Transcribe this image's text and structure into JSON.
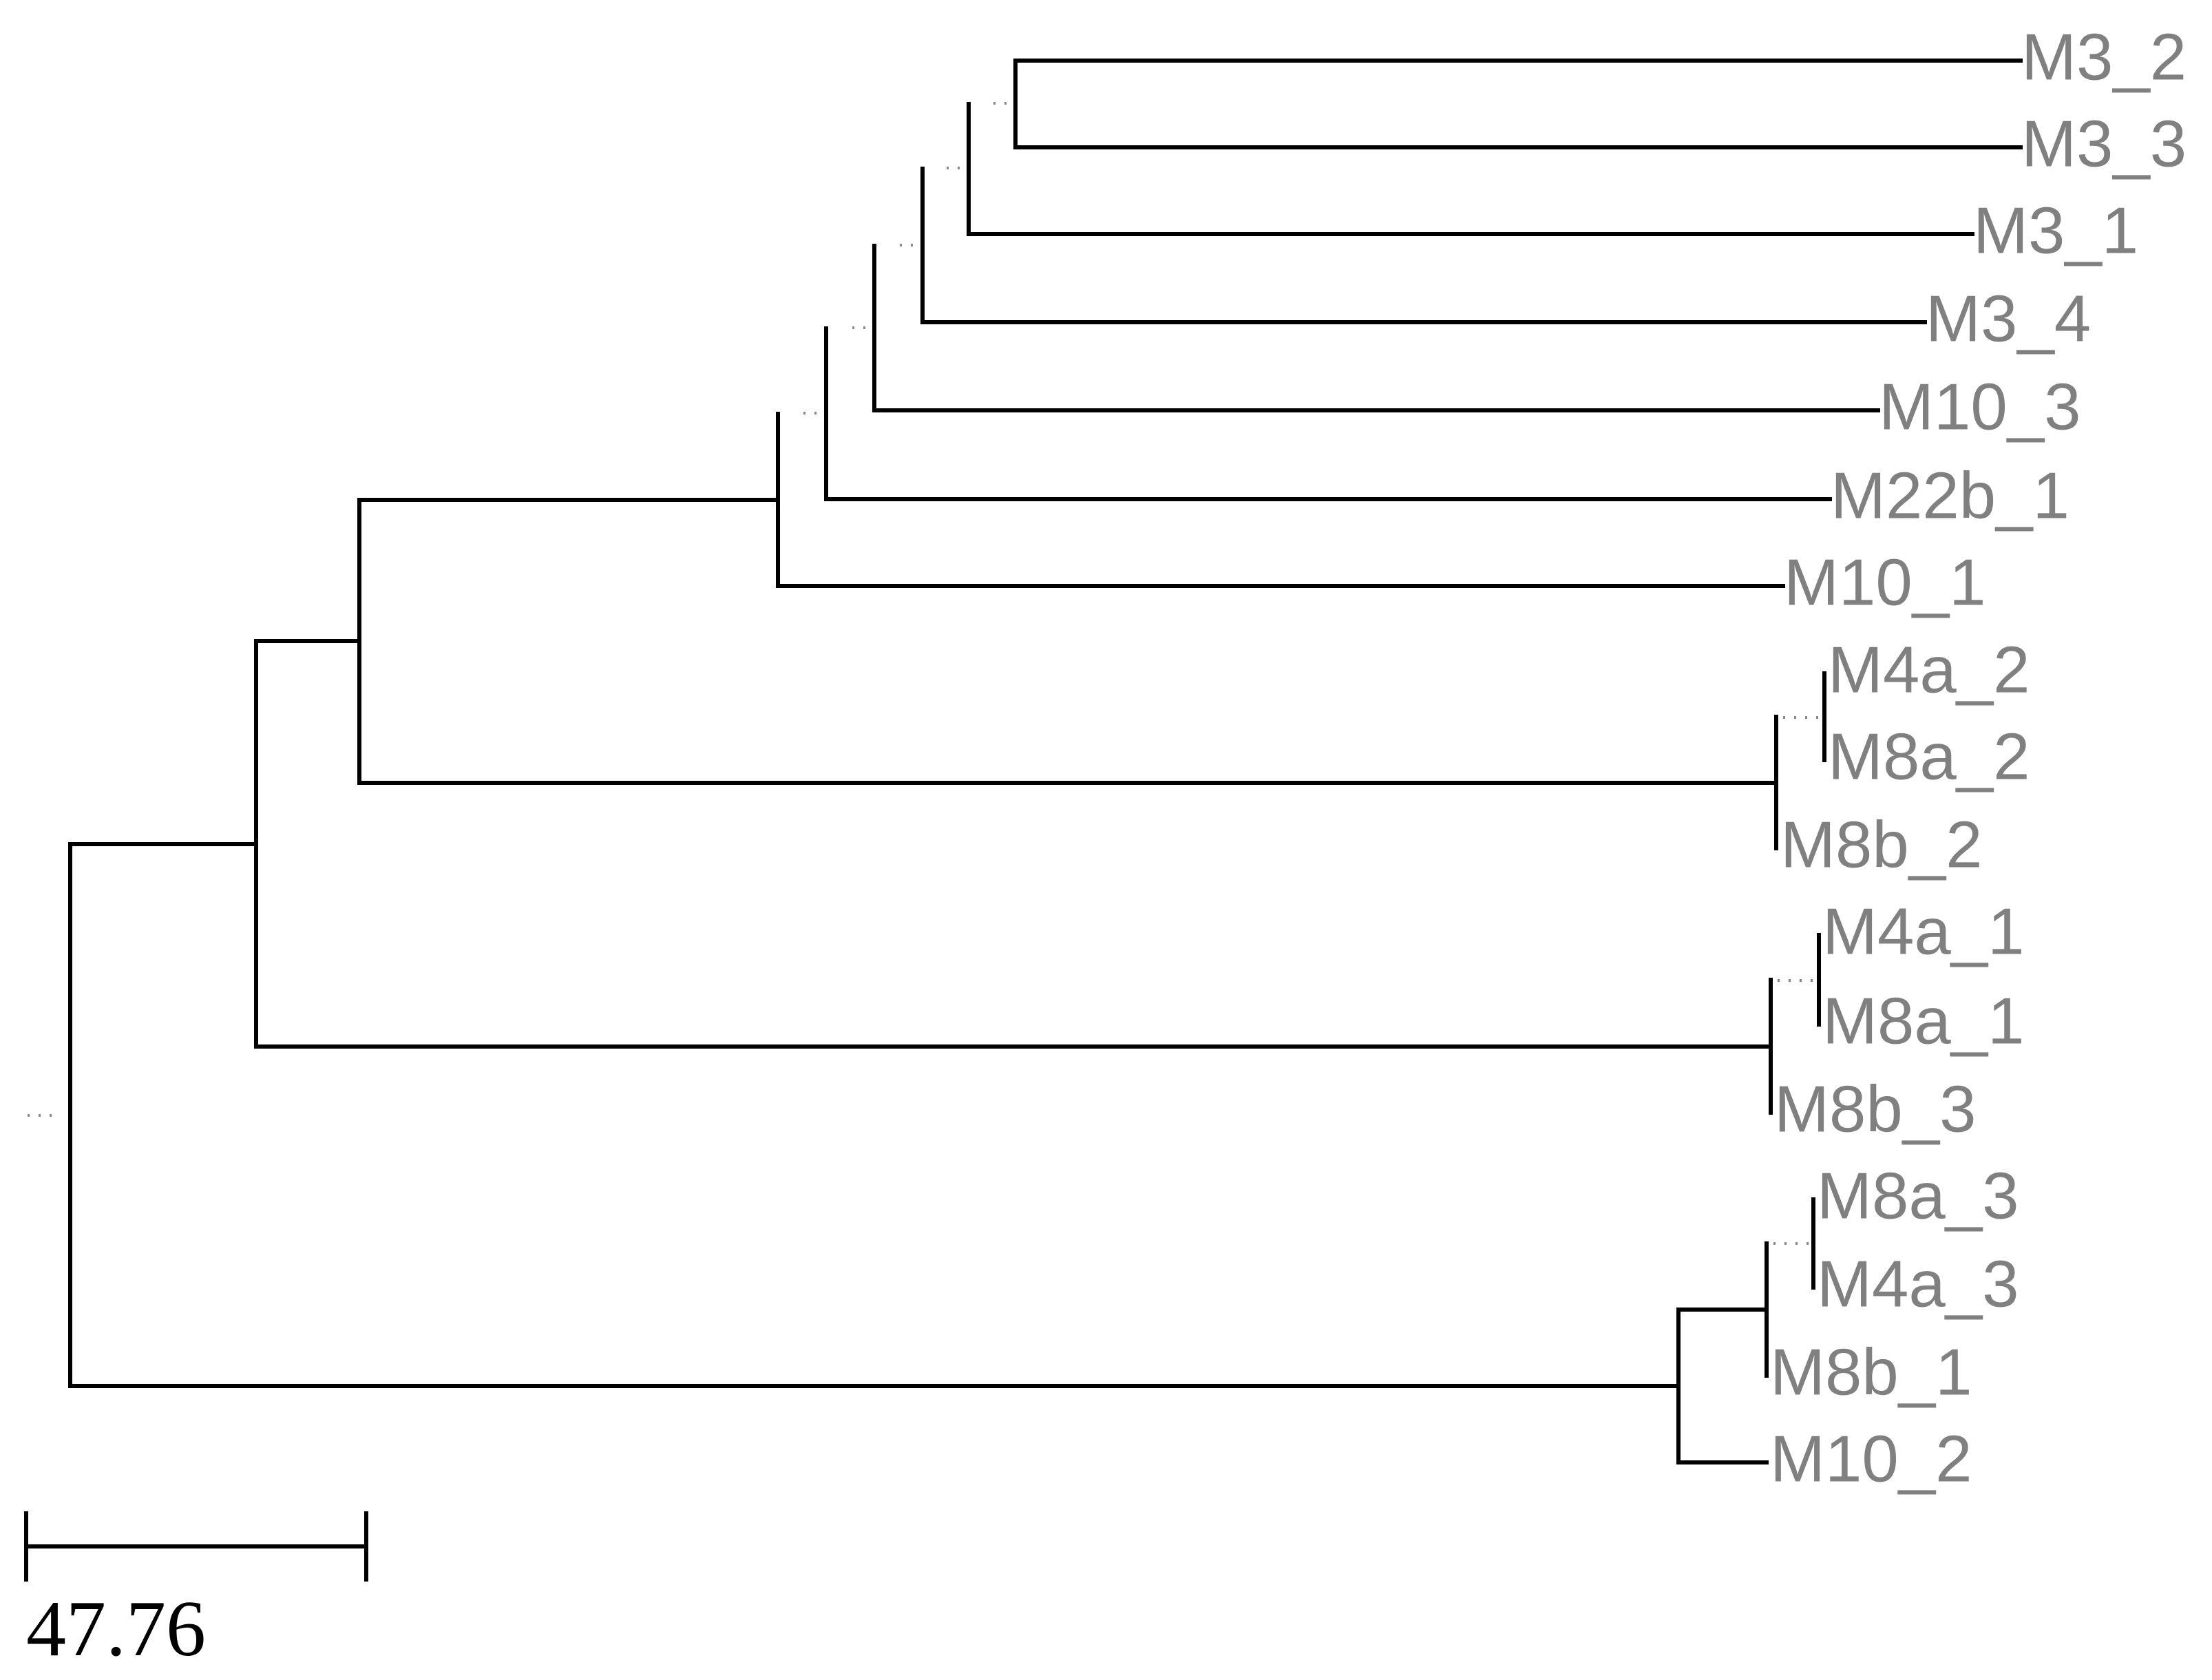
{
  "diagram": {
    "type": "dendrogram",
    "leaves": [
      "M3_2",
      "M3_3",
      "M3_1",
      "M3_4",
      "M10_3",
      "M22b_1",
      "M10_1",
      "M4a_2",
      "M8a_2",
      "M8b_2",
      "M4a_1",
      "M8a_1",
      "M8b_3",
      "M8a_3",
      "M4a_3",
      "M8b_1",
      "M10_2"
    ],
    "scale_bar": {
      "label": "47.76"
    },
    "colors": {
      "branch": "#000000",
      "label": "#808080",
      "dots": "#888888"
    }
  }
}
